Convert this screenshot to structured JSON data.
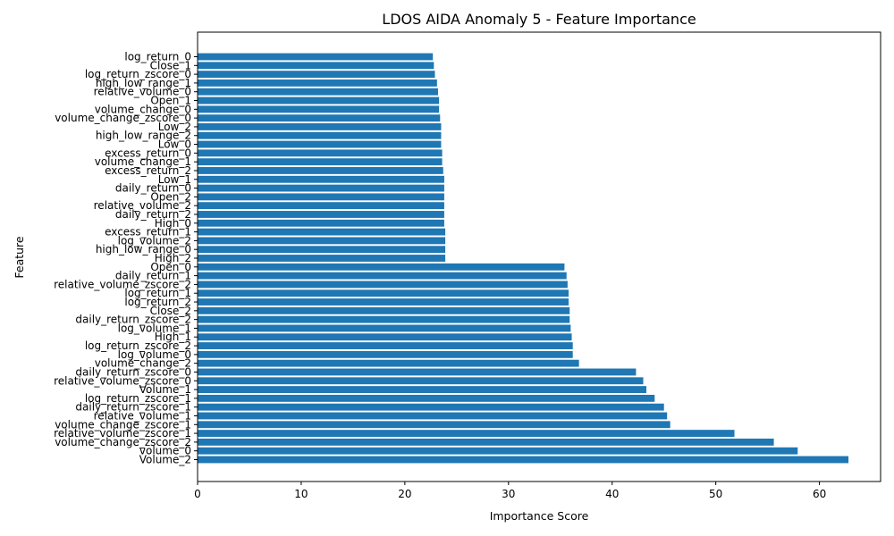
{
  "chart_data": {
    "type": "bar",
    "orientation": "horizontal",
    "title": "LDOS AIDA Anomaly 5 - Feature Importance",
    "xlabel": "Importance Score",
    "ylabel": "Feature",
    "xlim": [
      0,
      65.9
    ],
    "xticks": [
      0,
      10,
      20,
      30,
      40,
      50,
      60
    ],
    "bar_color": "#1f77b4",
    "grid": false,
    "categories": [
      "log_return_0",
      "Close_1",
      "log_return_zscore_0",
      "high_low_range_1",
      "relative_volume_0",
      "Open_1",
      "volume_change_0",
      "volume_change_zscore_0",
      "Low_2",
      "high_low_range_2",
      "Low_0",
      "excess_return_0",
      "volume_change_1",
      "excess_return_2",
      "Low_1",
      "daily_return_0",
      "Open_2",
      "relative_volume_2",
      "daily_return_2",
      "High_0",
      "excess_return_1",
      "log_volume_2",
      "high_low_range_0",
      "High_2",
      "Open_0",
      "daily_return_1",
      "relative_volume_zscore_2",
      "log_return_1",
      "log_return_2",
      "Close_2",
      "daily_return_zscore_2",
      "log_volume_1",
      "High_1",
      "log_return_zscore_2",
      "log_volume_0",
      "volume_change_2",
      "daily_return_zscore_0",
      "relative_volume_zscore_0",
      "Volume_1",
      "log_return_zscore_1",
      "daily_return_zscore_1",
      "relative_volume_1",
      "volume_change_zscore_1",
      "relative_volume_zscore_1",
      "volume_change_zscore_2",
      "volume_0",
      "Volume_2"
    ],
    "values": [
      22.7,
      22.8,
      22.9,
      23.1,
      23.2,
      23.3,
      23.3,
      23.4,
      23.5,
      23.5,
      23.5,
      23.6,
      23.6,
      23.7,
      23.8,
      23.8,
      23.8,
      23.8,
      23.8,
      23.8,
      23.9,
      23.9,
      23.9,
      23.9,
      35.4,
      35.6,
      35.7,
      35.8,
      35.8,
      35.9,
      35.9,
      36.0,
      36.1,
      36.2,
      36.2,
      36.8,
      42.3,
      43.0,
      43.3,
      44.1,
      45.0,
      45.3,
      45.6,
      51.8,
      55.6,
      57.9,
      62.8
    ]
  }
}
